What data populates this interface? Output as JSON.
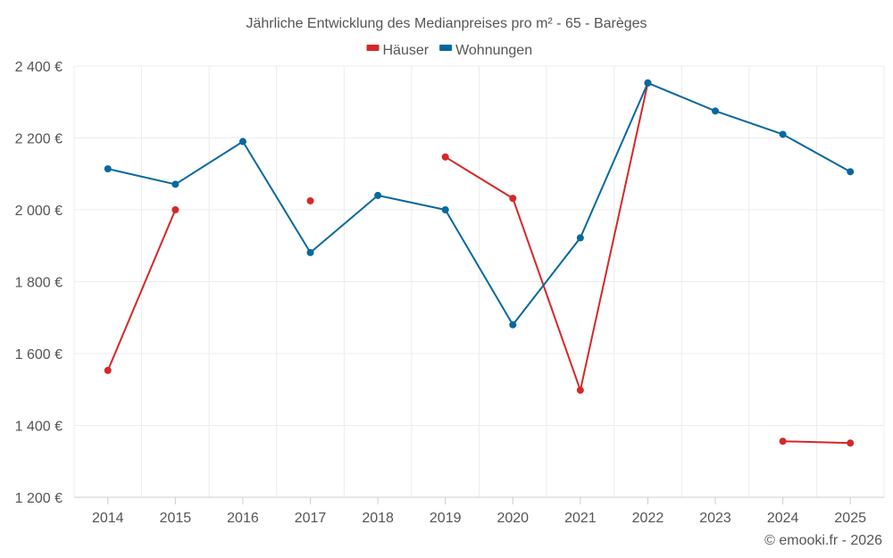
{
  "chart_data": {
    "type": "line",
    "title": "Jährliche Entwicklung des Medianpreises pro m² - 65 - Barèges",
    "xlabel": "",
    "ylabel": "",
    "ylim": [
      1200,
      2400
    ],
    "yticks": [
      1200,
      1400,
      1600,
      1800,
      2000,
      2200,
      2400
    ],
    "ytick_labels": [
      "1 200 €",
      "1 400 €",
      "1 600 €",
      "1 800 €",
      "2 000 €",
      "2 200 €",
      "2 400 €"
    ],
    "categories": [
      "2014",
      "2015",
      "2016",
      "2017",
      "2018",
      "2019",
      "2020",
      "2021",
      "2022",
      "2023",
      "2024",
      "2025"
    ],
    "grid": true,
    "legend_position": "top-center",
    "series": [
      {
        "name": "Häuser",
        "color": "#d62728",
        "values": [
          1553,
          2000,
          null,
          2025,
          null,
          2147,
          2032,
          1498,
          2353,
          null,
          1356,
          1351
        ]
      },
      {
        "name": "Wohnungen",
        "color": "#0868a0",
        "values": [
          2114,
          2071,
          2190,
          1881,
          2040,
          2000,
          1680,
          1922,
          2353,
          2275,
          2210,
          2106
        ]
      }
    ],
    "credit": "© emooki.fr - 2026"
  }
}
